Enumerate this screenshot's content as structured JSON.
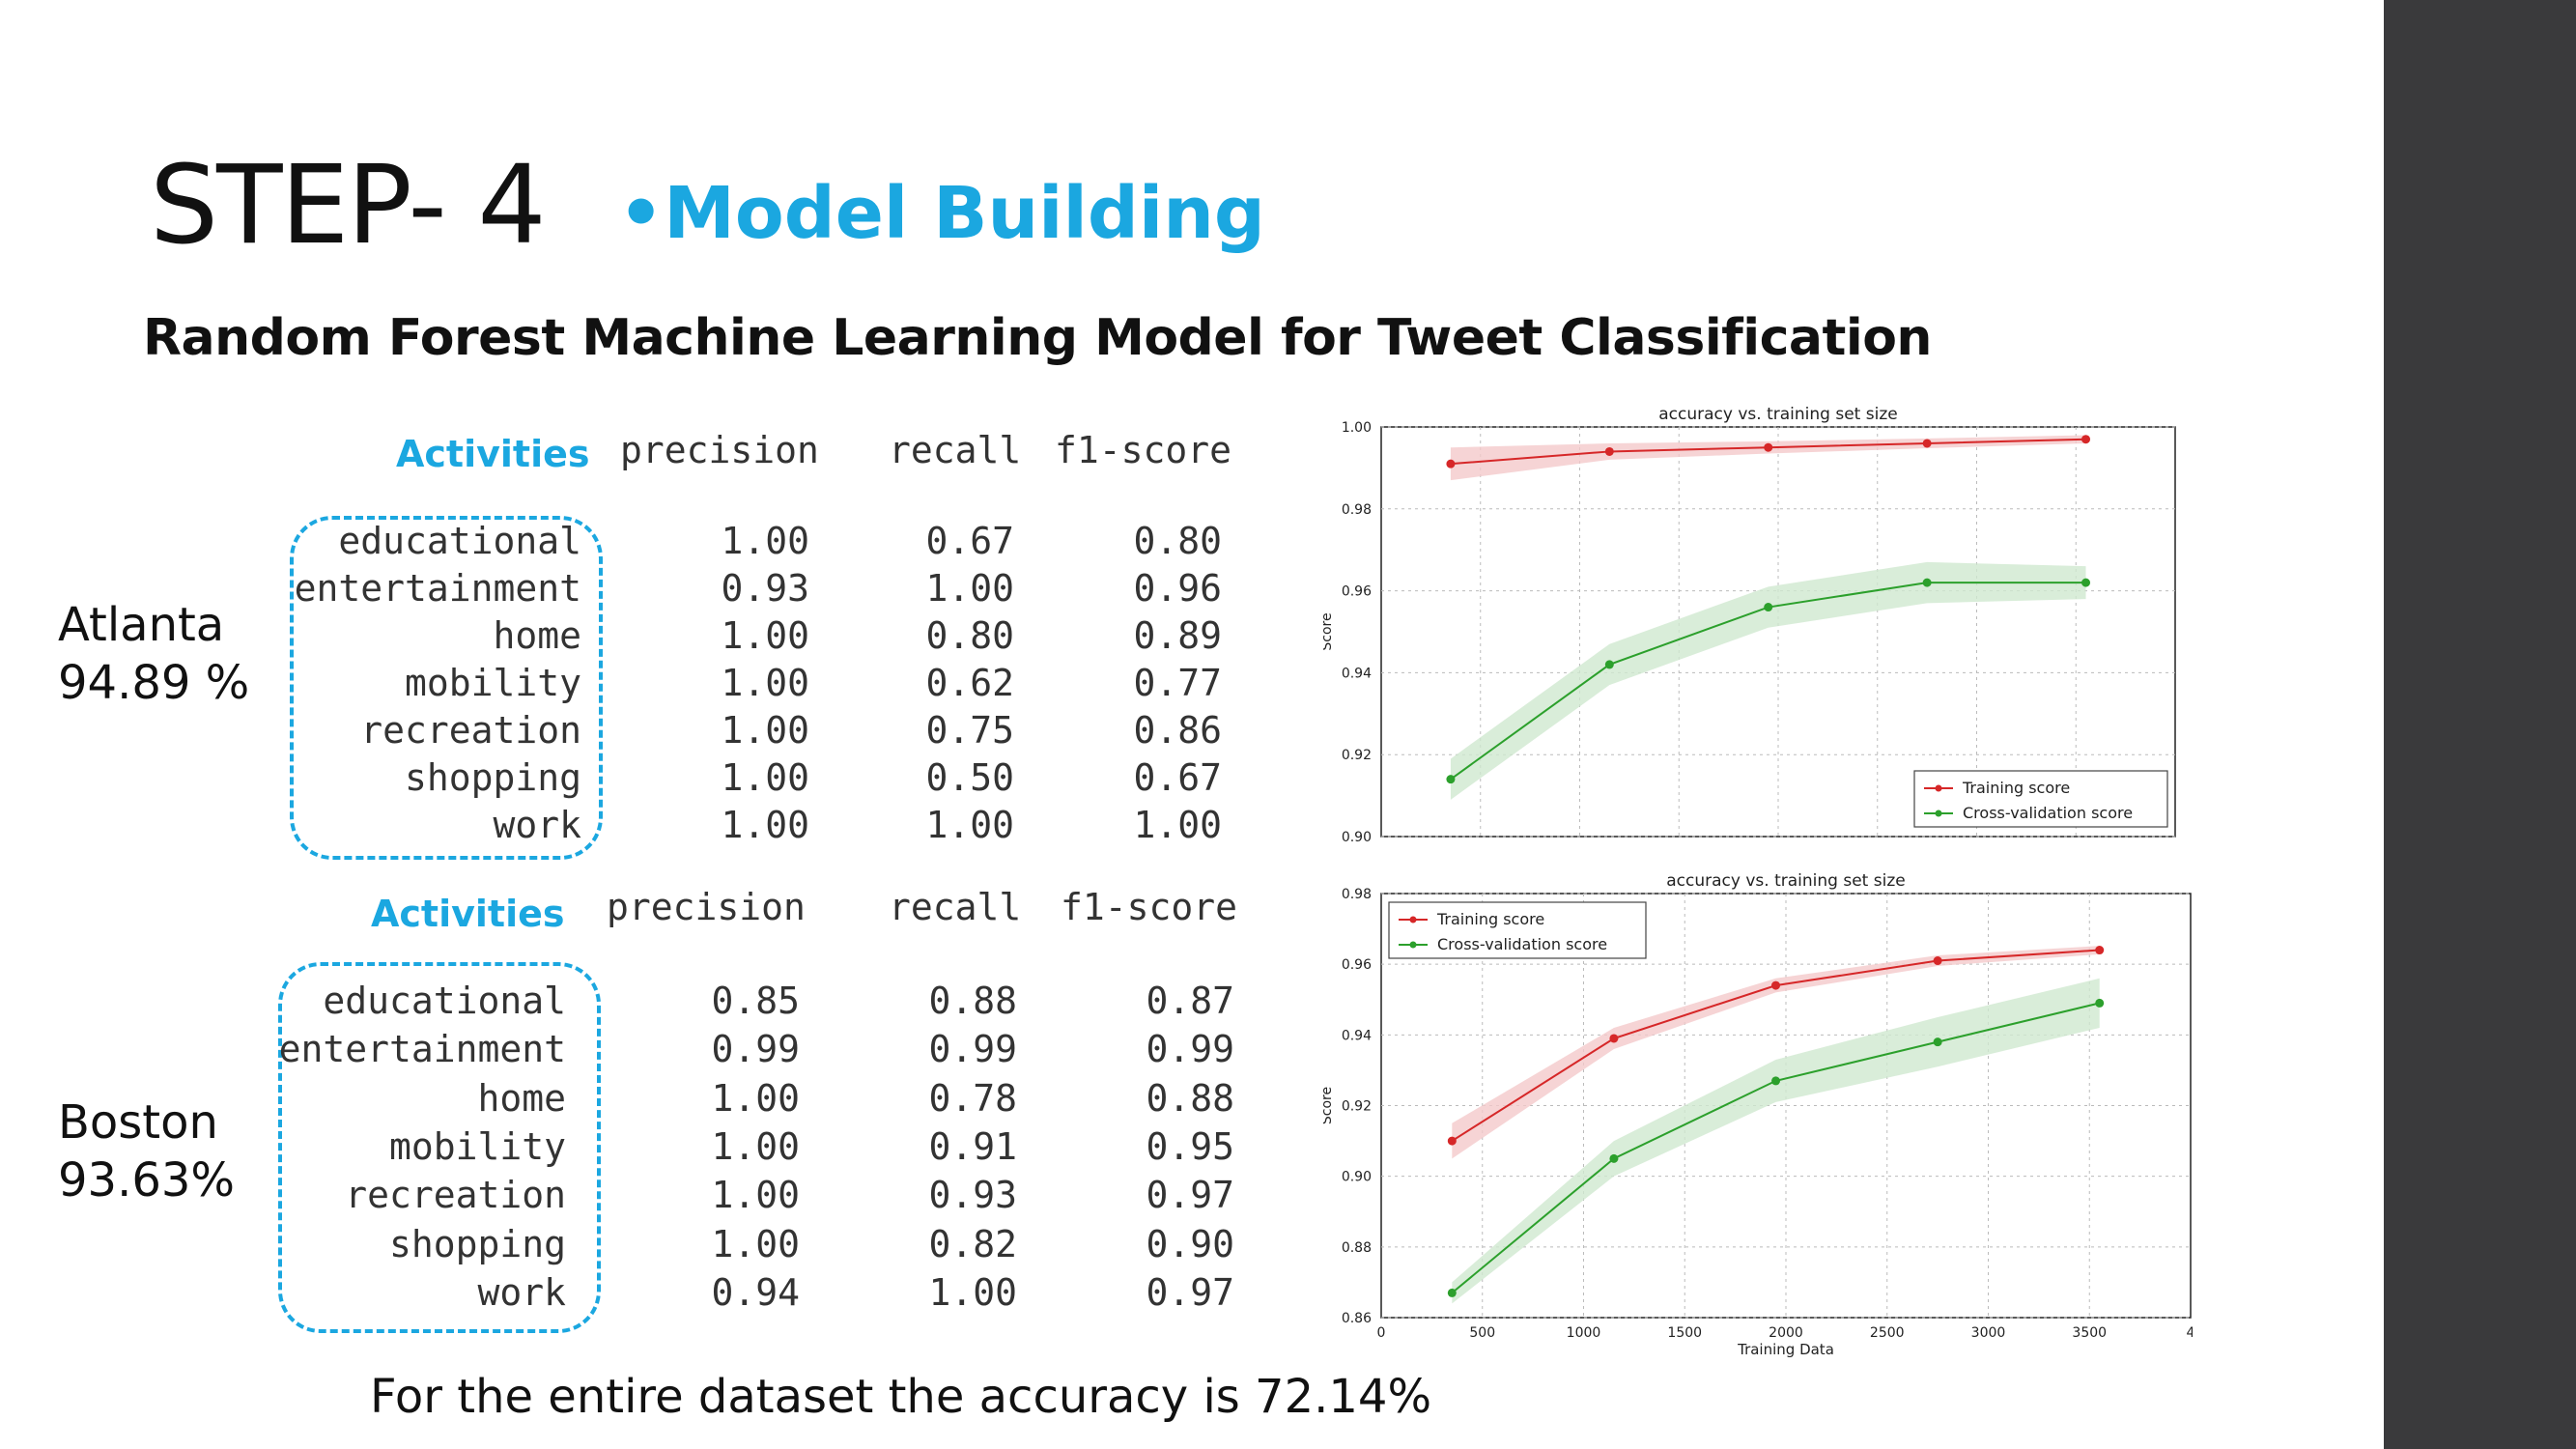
{
  "slide": {
    "step_title": "STEP- 4",
    "bullet": "•Model Building",
    "subtitle": "Random Forest Machine Learning Model for Tweet Classification",
    "footer": "For the entire dataset the accuracy is 72.14%"
  },
  "atlanta": {
    "city": "Atlanta",
    "accuracy": "94.89 %",
    "activities_header": "Activities",
    "columns": [
      "precision",
      "recall",
      "f1-score"
    ],
    "rows": [
      {
        "activity": "educational",
        "precision": "1.00",
        "recall": "0.67",
        "f1": "0.80"
      },
      {
        "activity": "entertainment",
        "precision": "0.93",
        "recall": "1.00",
        "f1": "0.96"
      },
      {
        "activity": "home",
        "precision": "1.00",
        "recall": "0.80",
        "f1": "0.89"
      },
      {
        "activity": "mobility",
        "precision": "1.00",
        "recall": "0.62",
        "f1": "0.77"
      },
      {
        "activity": "recreation",
        "precision": "1.00",
        "recall": "0.75",
        "f1": "0.86"
      },
      {
        "activity": "shopping",
        "precision": "1.00",
        "recall": "0.50",
        "f1": "0.67"
      },
      {
        "activity": "work",
        "precision": "1.00",
        "recall": "1.00",
        "f1": "1.00"
      }
    ]
  },
  "boston": {
    "city": "Boston",
    "accuracy": "93.63%",
    "activities_header": "Activities",
    "columns": [
      "precision",
      "recall",
      "f1-score"
    ],
    "rows": [
      {
        "activity": "educational",
        "precision": "0.85",
        "recall": "0.88",
        "f1": "0.87"
      },
      {
        "activity": "entertainment",
        "precision": "0.99",
        "recall": "0.99",
        "f1": "0.99"
      },
      {
        "activity": "home",
        "precision": "1.00",
        "recall": "0.78",
        "f1": "0.88"
      },
      {
        "activity": "mobility",
        "precision": "1.00",
        "recall": "0.91",
        "f1": "0.95"
      },
      {
        "activity": "recreation",
        "precision": "1.00",
        "recall": "0.93",
        "f1": "0.97"
      },
      {
        "activity": "shopping",
        "precision": "1.00",
        "recall": "0.82",
        "f1": "0.90"
      },
      {
        "activity": "work",
        "precision": "0.94",
        "recall": "1.00",
        "f1": "0.97"
      }
    ]
  },
  "colors": {
    "accent": "#1ba7e0",
    "training": "#d62728",
    "training_band": "#f4c9cb",
    "cv": "#2ca02c",
    "cv_band": "#cfe8cf",
    "sidebar": "#3a3a3c"
  },
  "chart_data": [
    {
      "type": "line",
      "title": "accuracy vs. training set size",
      "xlabel": "",
      "ylabel": "Score",
      "xlim": [
        0,
        4000
      ],
      "ylim": [
        0.9,
        1.0
      ],
      "yticks": [
        "1.00",
        "0.98",
        "0.96",
        "0.94",
        "0.92",
        "0.90"
      ],
      "xticks": [],
      "grid": true,
      "legend": "bottom-right",
      "series": [
        {
          "name": "Training score",
          "x": [
            350,
            1150,
            1950,
            2750,
            3550
          ],
          "values": [
            0.991,
            0.994,
            0.995,
            0.996,
            0.997
          ],
          "band": [
            0.004,
            0.002,
            0.0015,
            0.0012,
            0.001
          ]
        },
        {
          "name": "Cross-validation score",
          "x": [
            350,
            1150,
            1950,
            2750,
            3550
          ],
          "values": [
            0.914,
            0.942,
            0.956,
            0.962,
            0.962
          ],
          "band": [
            0.005,
            0.005,
            0.005,
            0.005,
            0.004
          ]
        }
      ]
    },
    {
      "type": "line",
      "title": "accuracy vs. training set size",
      "xlabel": "Training Data",
      "ylabel": "Score",
      "xlim": [
        0,
        4000
      ],
      "ylim": [
        0.86,
        0.98
      ],
      "yticks": [
        "0.98",
        "0.96",
        "0.94",
        "0.92",
        "0.90",
        "0.88",
        "0.86"
      ],
      "xticks": [
        "0",
        "500",
        "1000",
        "1500",
        "2000",
        "2500",
        "3000",
        "3500",
        "4"
      ],
      "grid": true,
      "legend": "top-left",
      "series": [
        {
          "name": "Training score",
          "x": [
            350,
            1150,
            1950,
            2750,
            3550
          ],
          "values": [
            0.91,
            0.939,
            0.954,
            0.961,
            0.964
          ],
          "band": [
            0.005,
            0.003,
            0.002,
            0.0015,
            0.0012
          ]
        },
        {
          "name": "Cross-validation score",
          "x": [
            350,
            1150,
            1950,
            2750,
            3550
          ],
          "values": [
            0.867,
            0.905,
            0.927,
            0.938,
            0.949
          ],
          "band": [
            0.003,
            0.005,
            0.006,
            0.007,
            0.007
          ]
        }
      ]
    }
  ]
}
